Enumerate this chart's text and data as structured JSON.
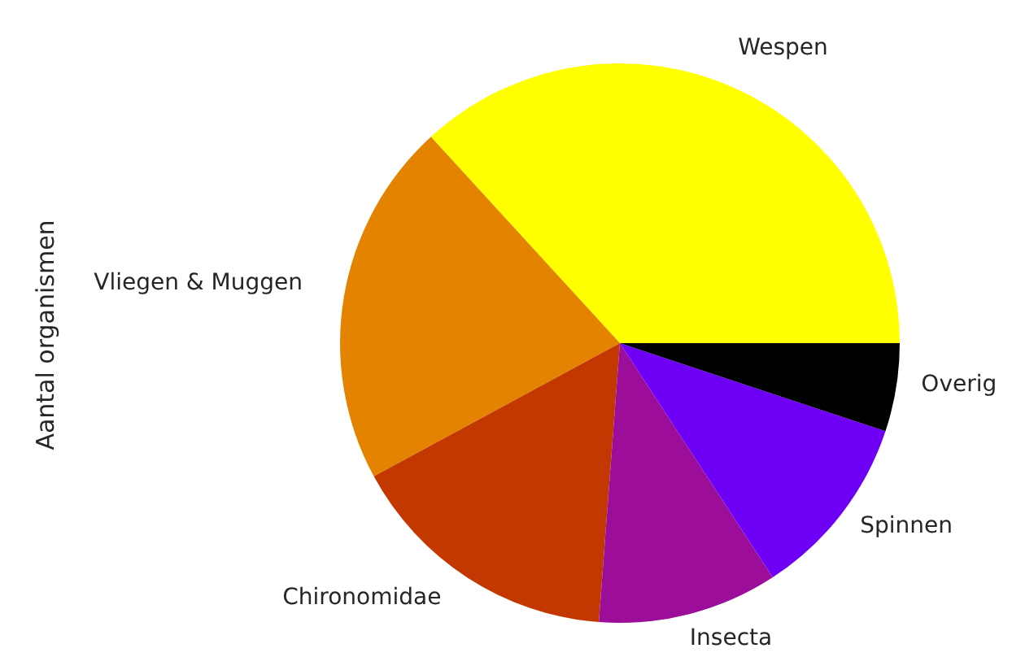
{
  "chart_data": {
    "type": "pie",
    "ylabel": "Aantal organismen",
    "categories": [
      "Wespen",
      "Vliegen & Muggen",
      "Chironomidae",
      "Insecta",
      "Spinnen",
      "Overig"
    ],
    "values": [
      36.8,
      21.1,
      15.9,
      10.4,
      10.7,
      5.1
    ],
    "colors": [
      "#ffff00",
      "#e38300",
      "#c33800",
      "#9c0e9a",
      "#6e00f5",
      "#000000"
    ],
    "legend": false
  }
}
